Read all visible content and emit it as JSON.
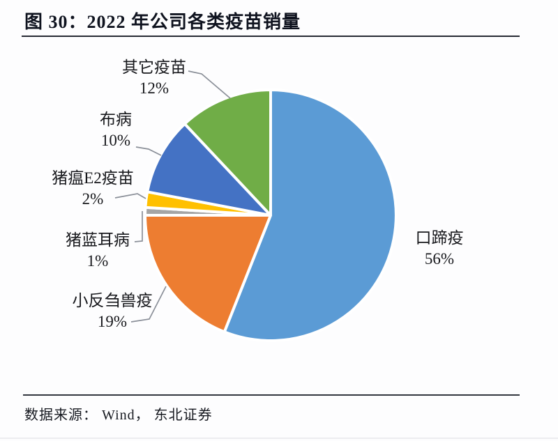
{
  "figure": {
    "title": "图 30：2022 年公司各类疫苗销量",
    "source": "数据来源： Wind， 东北证券"
  },
  "chart_data": {
    "type": "pie",
    "title": "2022 年公司各类疫苗销量",
    "unit": "percent",
    "start_angle_deg": 0,
    "direction": "clockwise",
    "legend": "none",
    "label_format": "name + percent (outside callouts)",
    "slices": [
      {
        "label": "口蹄疫",
        "value": 56,
        "percent_label": "56%",
        "color": "#5B9BD5"
      },
      {
        "label": "小反刍兽疫",
        "value": 19,
        "percent_label": "19%",
        "color": "#ED7D31"
      },
      {
        "label": "猪蓝耳病",
        "value": 1,
        "percent_label": "1%",
        "color": "#A5A5A5"
      },
      {
        "label": "猪瘟E2疫苗",
        "value": 2,
        "percent_label": "2%",
        "color": "#FFC000"
      },
      {
        "label": "布病",
        "value": 10,
        "percent_label": "10%",
        "color": "#4472C4"
      },
      {
        "label": "其它疫苗",
        "value": 12,
        "percent_label": "12%",
        "color": "#70AD47"
      }
    ],
    "colors": {
      "slice_border": "#ffffff",
      "leader_line": "#8a8f98",
      "title_text": "#0f131f",
      "label_text": "#17181c",
      "rule": "#262a33"
    }
  }
}
